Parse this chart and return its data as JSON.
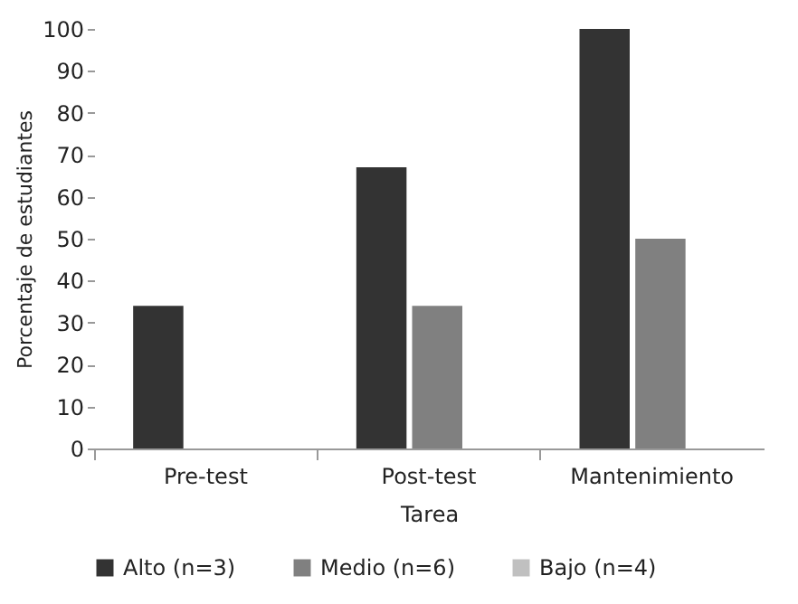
{
  "chart_data": {
    "type": "bar",
    "xlabel": "Tarea",
    "ylabel": "Porcentaje de estudiantes",
    "categories": [
      "Pre-test",
      "Post-test",
      "Mantenimiento"
    ],
    "series": [
      {
        "name": "Alto (n=3)",
        "color": "#333333",
        "values": [
          34,
          67,
          100
        ]
      },
      {
        "name": "Medio (n=6)",
        "color": "#808080",
        "values": [
          0,
          34,
          50
        ]
      },
      {
        "name": "Bajo (n=4)",
        "color": "#c0c0c0",
        "values": [
          0,
          0,
          0
        ]
      }
    ],
    "ylim": [
      0,
      100
    ],
    "yticks": [
      0,
      10,
      20,
      30,
      40,
      50,
      60,
      70,
      80,
      90,
      100
    ],
    "grid": false,
    "legend": "bottom"
  }
}
